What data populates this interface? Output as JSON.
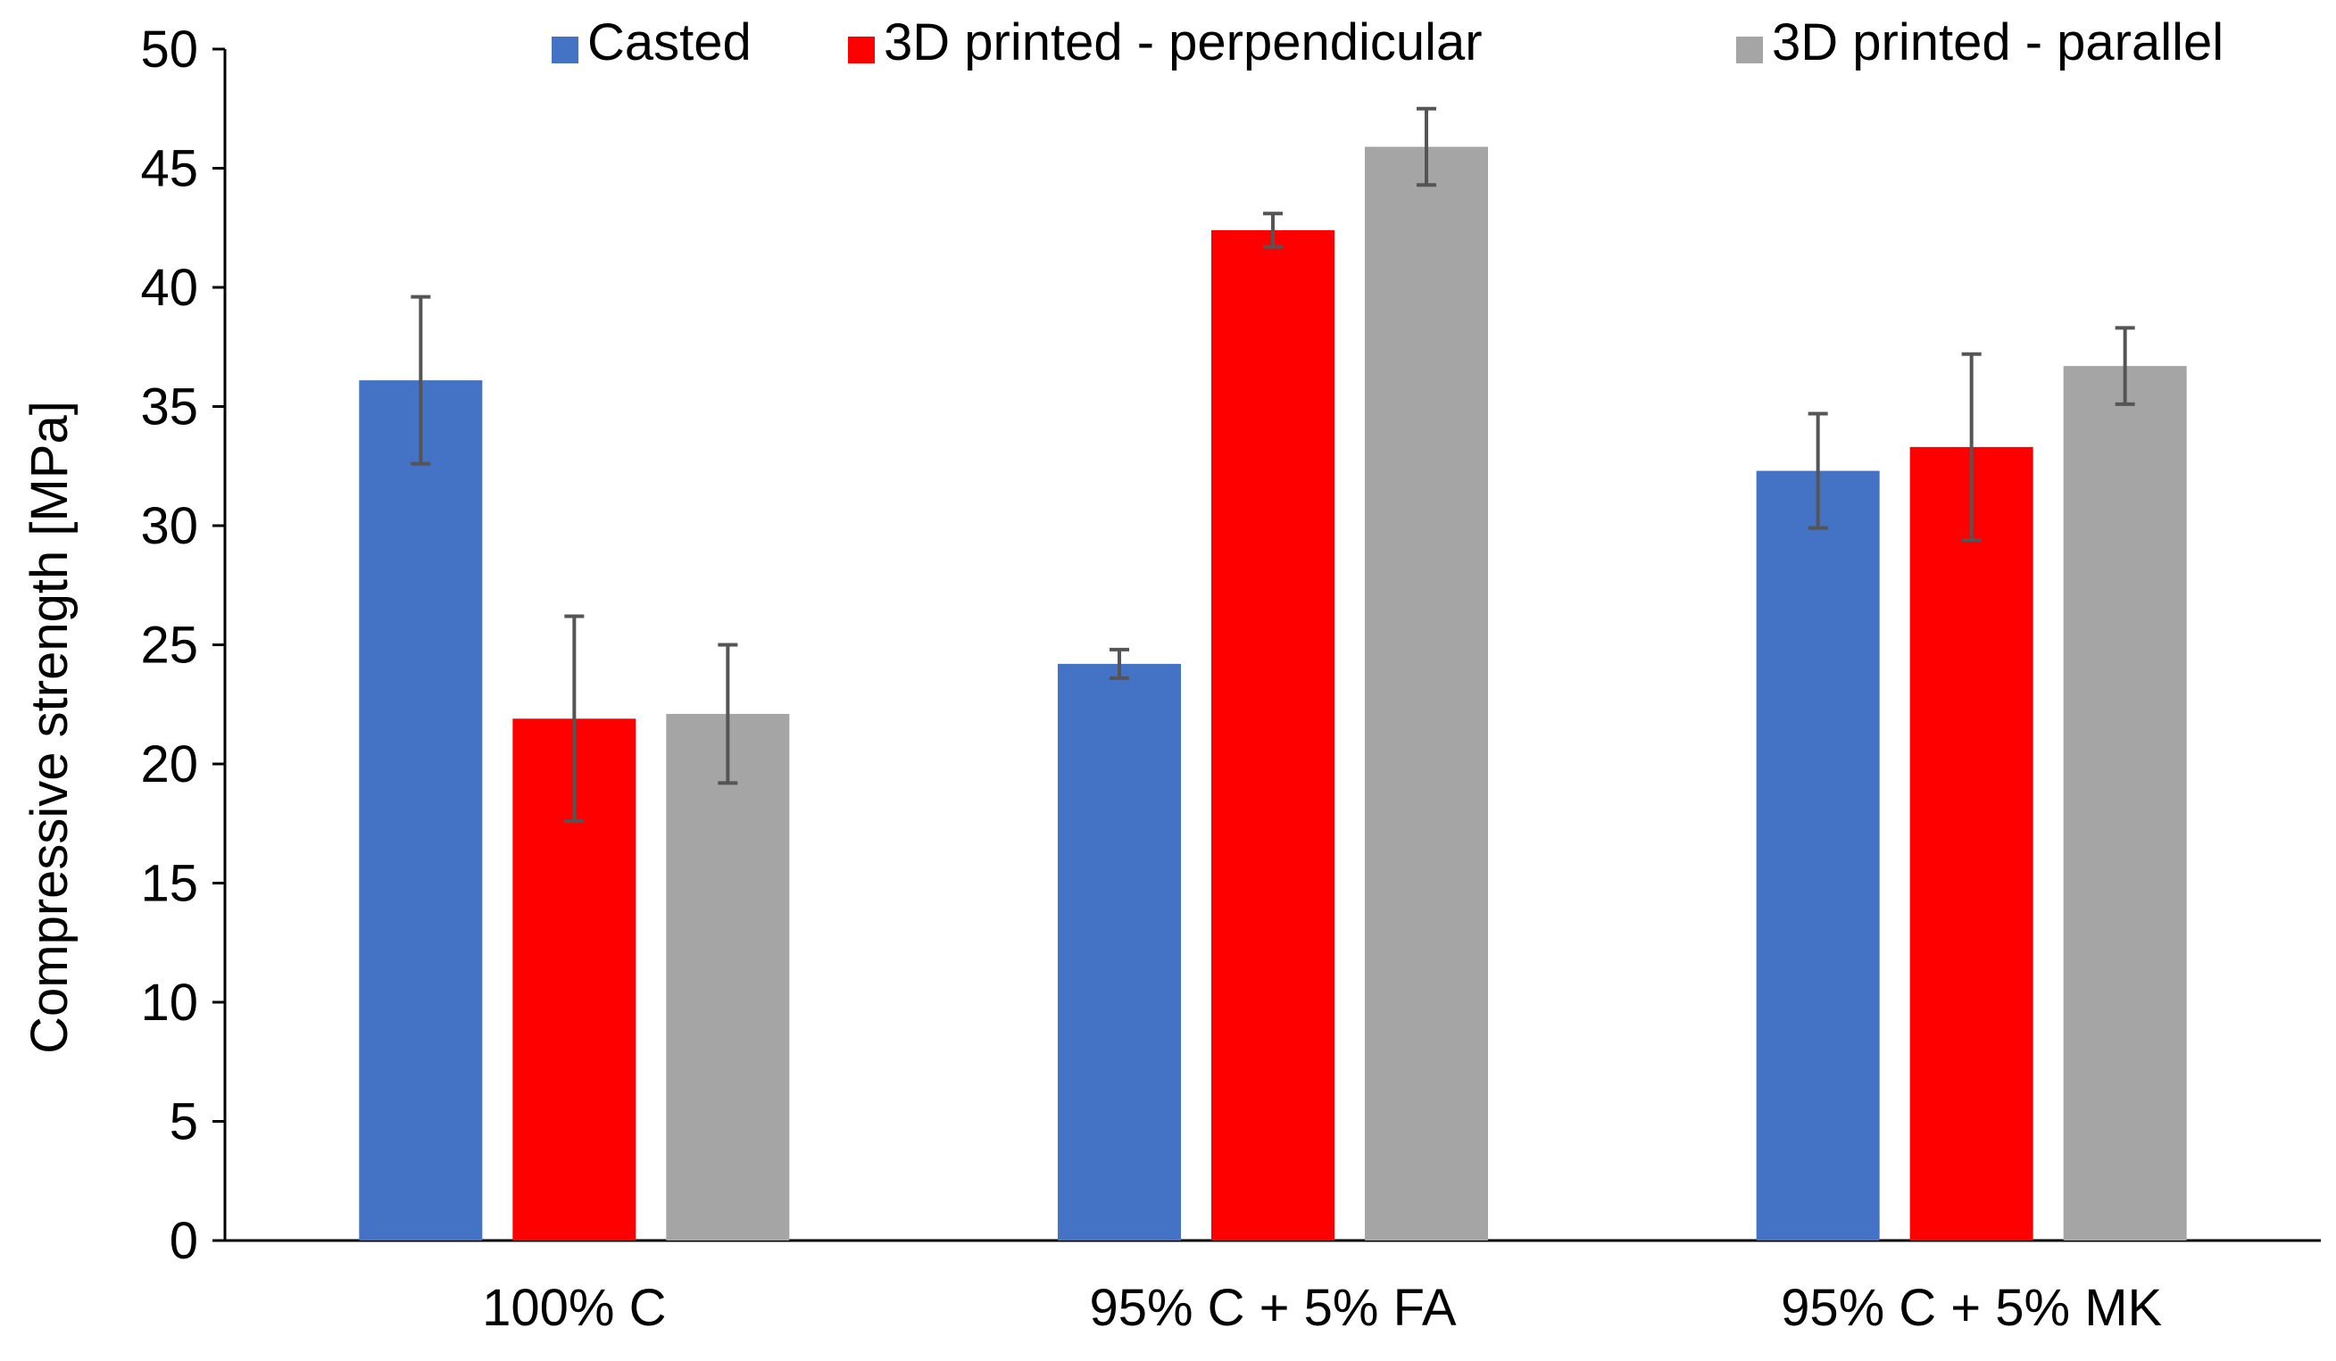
{
  "chart_data": {
    "type": "bar",
    "title": "",
    "xlabel": "",
    "ylabel": "Compressive strength [MPa]",
    "ylim": [
      0,
      50
    ],
    "yticks": [
      0,
      5,
      10,
      15,
      20,
      25,
      30,
      35,
      40,
      45,
      50
    ],
    "grid": false,
    "legend_position": "top-right",
    "categories": [
      "100% C",
      "95% C + 5% FA",
      "95% C + 5% MK"
    ],
    "series": [
      {
        "name": "Casted",
        "color": "#4472C4",
        "values": [
          36.1,
          24.2,
          32.3
        ],
        "errors": [
          3.5,
          0.6,
          2.4
        ]
      },
      {
        "name": "3D printed - perpendicular",
        "color": "#FF0000",
        "values": [
          21.9,
          42.4,
          33.3
        ],
        "errors": [
          4.3,
          0.7,
          3.9
        ]
      },
      {
        "name": "3D printed - parallel",
        "color": "#A5A5A5",
        "values": [
          22.1,
          45.9,
          36.7
        ],
        "errors": [
          2.9,
          1.6,
          1.6
        ]
      }
    ]
  }
}
